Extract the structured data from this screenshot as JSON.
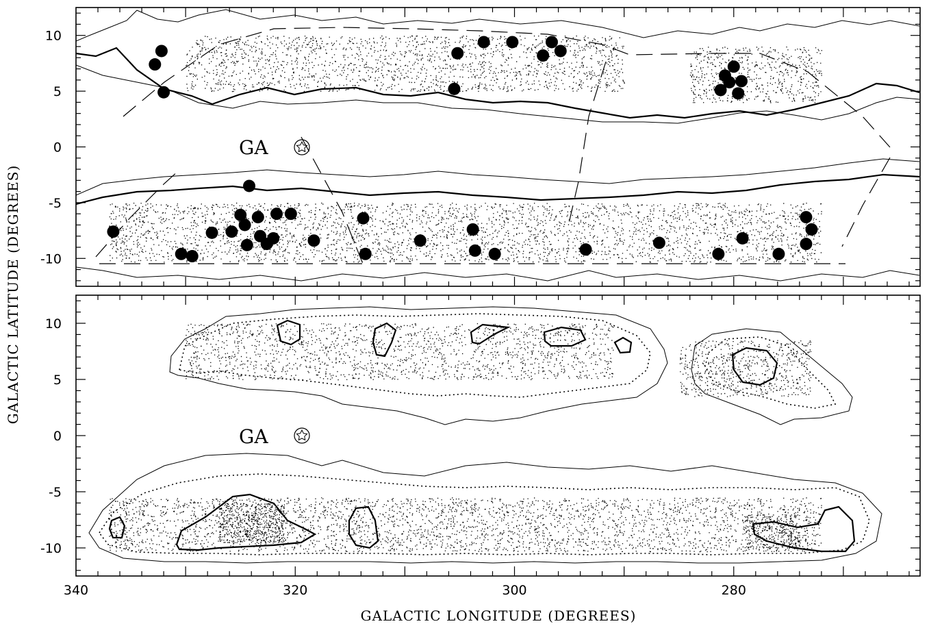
{
  "chart_data": [
    {
      "type": "scatter",
      "panel": "top",
      "xlabel": "GALACTIC LONGITUDE (DEGREES)",
      "ylabel": "GALACTIC LATITUDE (DEGREES)",
      "xlim": [
        340,
        263
      ],
      "ylim": [
        -12.5,
        12.5
      ],
      "x_ticks": [
        340,
        320,
        300,
        280
      ],
      "y_ticks": [
        10,
        5,
        0,
        -5,
        -10
      ],
      "annotation": {
        "text": "GA",
        "marker": "star",
        "l": 320,
        "b": 0
      },
      "survey_boundary": {
        "style": "dashed",
        "b_limits": [
          -10.4,
          10.4
        ]
      },
      "contours": "extinction contours (thin and thick) tracing the Zone of Avoidance",
      "series": [
        {
          "marker": "filled-circle",
          "points": [
            {
              "l": 332.8,
              "b": 7.4
            },
            {
              "l": 332.2,
              "b": 8.6
            },
            {
              "l": 332.0,
              "b": 4.9
            },
            {
              "l": 305.2,
              "b": 8.4
            },
            {
              "l": 305.5,
              "b": 5.2
            },
            {
              "l": 302.8,
              "b": 9.4
            },
            {
              "l": 300.2,
              "b": 9.4
            },
            {
              "l": 297.4,
              "b": 8.2
            },
            {
              "l": 296.6,
              "b": 9.4
            },
            {
              "l": 295.8,
              "b": 8.6
            },
            {
              "l": 280.8,
              "b": 6.4
            },
            {
              "l": 280.0,
              "b": 7.2
            },
            {
              "l": 280.4,
              "b": 5.8
            },
            {
              "l": 281.2,
              "b": 5.1
            },
            {
              "l": 279.6,
              "b": 4.8
            },
            {
              "l": 279.3,
              "b": 5.9
            },
            {
              "l": 336.6,
              "b": -7.6
            },
            {
              "l": 330.4,
              "b": -9.6
            },
            {
              "l": 329.4,
              "b": -9.8
            },
            {
              "l": 327.6,
              "b": -7.7
            },
            {
              "l": 325.8,
              "b": -7.6
            },
            {
              "l": 325.0,
              "b": -6.1
            },
            {
              "l": 324.6,
              "b": -7.0
            },
            {
              "l": 324.4,
              "b": -8.8
            },
            {
              "l": 324.2,
              "b": -3.5
            },
            {
              "l": 323.4,
              "b": -6.3
            },
            {
              "l": 323.2,
              "b": -8.0
            },
            {
              "l": 322.6,
              "b": -8.7
            },
            {
              "l": 322.0,
              "b": -8.2
            },
            {
              "l": 321.7,
              "b": -6.0
            },
            {
              "l": 320.4,
              "b": -6.0
            },
            {
              "l": 318.3,
              "b": -8.4
            },
            {
              "l": 313.8,
              "b": -6.4
            },
            {
              "l": 313.6,
              "b": -9.6
            },
            {
              "l": 308.6,
              "b": -8.4
            },
            {
              "l": 303.8,
              "b": -7.4
            },
            {
              "l": 303.6,
              "b": -9.3
            },
            {
              "l": 301.8,
              "b": -9.6
            },
            {
              "l": 293.5,
              "b": -9.2
            },
            {
              "l": 286.8,
              "b": -8.6
            },
            {
              "l": 281.4,
              "b": -9.6
            },
            {
              "l": 279.2,
              "b": -8.2
            },
            {
              "l": 275.9,
              "b": -9.6
            },
            {
              "l": 273.4,
              "b": -6.3
            },
            {
              "l": 273.4,
              "b": -8.7
            },
            {
              "l": 272.9,
              "b": -7.4
            }
          ]
        }
      ]
    },
    {
      "type": "scatter",
      "panel": "bottom",
      "xlabel": "GALACTIC LONGITUDE (DEGREES)",
      "ylabel": "GALACTIC LATITUDE (DEGREES)",
      "xlim": [
        340,
        263
      ],
      "ylim": [
        -12.5,
        12.5
      ],
      "x_ticks": [
        340,
        320,
        300,
        280
      ],
      "y_ticks": [
        10,
        5,
        0,
        -5,
        -10
      ],
      "annotation": {
        "text": "GA",
        "marker": "star",
        "l": 320,
        "b": 0
      },
      "contours": "galaxy density contours (thin, dotted, dash-dotted, thick) with point density field"
    }
  ]
}
